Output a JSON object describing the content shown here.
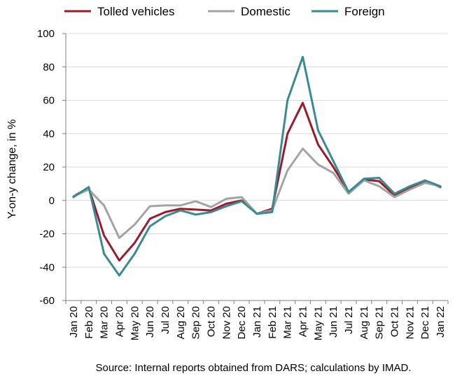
{
  "chart_data": {
    "type": "line",
    "categories": [
      "Jan 20",
      "Feb 20",
      "Mar 20",
      "Apr 20",
      "May 20",
      "Jun 20",
      "Jul 20",
      "Aug 20",
      "Sep 20",
      "Oct 20",
      "Nov 20",
      "Dec 20",
      "Jan 21",
      "Feb 21",
      "Mar 21",
      "Apr 21",
      "May 21",
      "Jun 21",
      "Jul 21",
      "Aug 21",
      "Sep 21",
      "Oct 21",
      "Nov 21",
      "Dec 21",
      "Jan 22"
    ],
    "series": [
      {
        "name": "Tolled vehicles",
        "color": "#9b1a2b",
        "values": [
          2.5,
          7.5,
          -21,
          -36,
          -25.5,
          -11,
          -7,
          -5,
          -5.5,
          -6,
          -2,
          0,
          -8,
          -5,
          40,
          58.5,
          33.5,
          20,
          5,
          12.5,
          11.5,
          3,
          7.5,
          11.5,
          8
        ]
      },
      {
        "name": "Domestic",
        "color": "#a3a3a3",
        "values": [
          2.5,
          6.5,
          -3,
          -22.5,
          -14.5,
          -3.5,
          -3,
          -3,
          -0.5,
          -4,
          1,
          2,
          -8,
          -6,
          18,
          31,
          21.5,
          16.5,
          4,
          12,
          8.5,
          2,
          6.5,
          10.5,
          8.5
        ]
      },
      {
        "name": "Foreign",
        "color": "#3a8a91",
        "values": [
          2,
          8,
          -32,
          -45,
          -32,
          -15.5,
          -9.5,
          -6,
          -8.5,
          -7,
          -3.5,
          -0.5,
          -8,
          -7,
          60,
          86,
          42,
          23.5,
          5,
          13,
          13.5,
          4,
          8.5,
          12,
          8.5
        ]
      }
    ],
    "ylabel": "Y-on-y change, in %",
    "ylim": [
      -60,
      100
    ],
    "yticks": [
      -60,
      -40,
      -20,
      0,
      20,
      40,
      60,
      80,
      100
    ],
    "grid": true,
    "legend_position": "top",
    "source": "Source: Internal reports obtained from DARS; calculations by IMAD."
  }
}
